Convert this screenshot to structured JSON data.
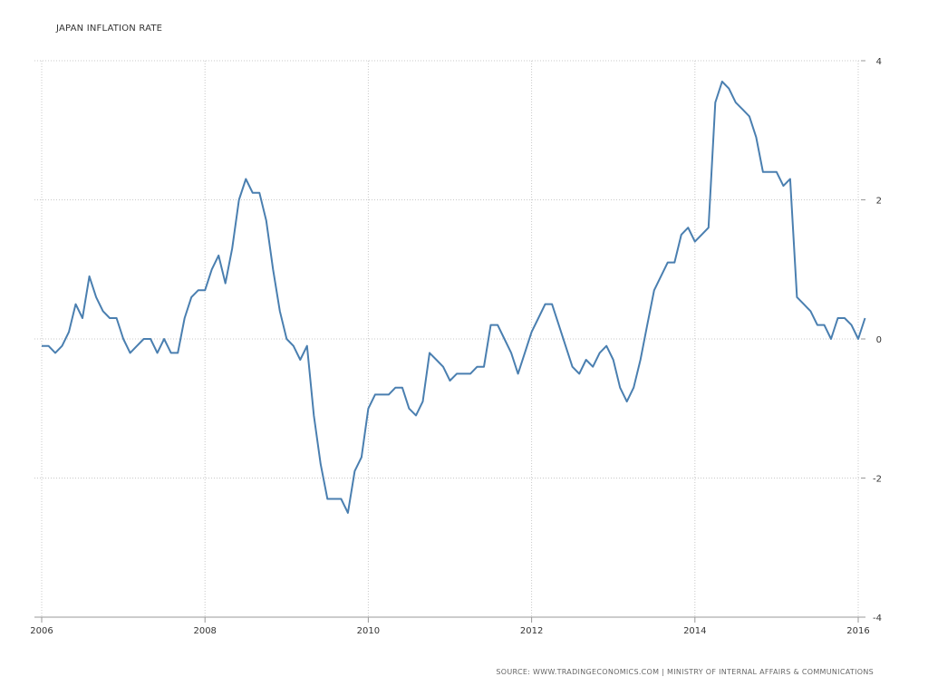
{
  "title": "JAPAN INFLATION RATE",
  "source": "SOURCE: WWW.TRADINGECONOMICS.COM | MINISTRY OF INTERNAL AFFAIRS & COMMUNICATIONS",
  "colors": {
    "line": "#4a7fb0",
    "grid": "#c8c8c8",
    "text": "#333333"
  },
  "chart_data": {
    "type": "line",
    "title": "JAPAN INFLATION RATE",
    "xlabel": "",
    "ylabel": "",
    "xlim": [
      2006.0,
      2016.17
    ],
    "ylim": [
      -4,
      4
    ],
    "x_ticks": [
      2006,
      2008,
      2010,
      2012,
      2014,
      2016
    ],
    "y_ticks": [
      4,
      2,
      0,
      -2,
      -4
    ],
    "grid": true,
    "legend": "none",
    "y_axis_side": "right",
    "series": [
      {
        "start": "2006-01",
        "frequency": "monthly",
        "values": [
          -0.1,
          -0.1,
          -0.2,
          -0.1,
          0.1,
          0.5,
          0.3,
          0.9,
          0.6,
          0.4,
          0.3,
          0.3,
          0.0,
          -0.2,
          -0.1,
          0.0,
          0.0,
          -0.2,
          0.0,
          -0.2,
          -0.2,
          0.3,
          0.6,
          0.7,
          0.7,
          1.0,
          1.2,
          0.8,
          1.3,
          2.0,
          2.3,
          2.1,
          2.1,
          1.7,
          1.0,
          0.4,
          0.0,
          -0.1,
          -0.3,
          -0.1,
          -1.1,
          -1.8,
          -2.3,
          -2.3,
          -2.3,
          -2.5,
          -1.9,
          -1.7,
          -1.0,
          -0.8,
          -0.8,
          -0.8,
          -0.7,
          -0.7,
          -1.0,
          -1.1,
          -0.9,
          -0.2,
          -0.3,
          -0.4,
          -0.6,
          -0.5,
          -0.5,
          -0.5,
          -0.4,
          -0.4,
          0.2,
          0.2,
          0.0,
          -0.2,
          -0.5,
          -0.2,
          0.1,
          0.3,
          0.5,
          0.5,
          0.2,
          -0.1,
          -0.4,
          -0.5,
          -0.3,
          -0.4,
          -0.2,
          -0.1,
          -0.3,
          -0.7,
          -0.9,
          -0.7,
          -0.3,
          0.2,
          0.7,
          0.9,
          1.1,
          1.1,
          1.5,
          1.6,
          1.4,
          1.5,
          1.6,
          3.4,
          3.7,
          3.6,
          3.4,
          3.3,
          3.2,
          2.9,
          2.4,
          2.4,
          2.4,
          2.2,
          2.3,
          0.6,
          0.5,
          0.4,
          0.2,
          0.2,
          0.0,
          0.3,
          0.3,
          0.2,
          0.0,
          0.3
        ]
      }
    ]
  }
}
